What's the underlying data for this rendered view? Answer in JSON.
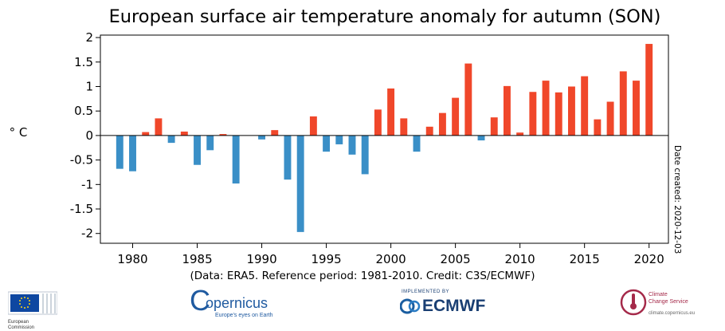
{
  "chart_data": {
    "type": "bar",
    "title": "European surface air temperature anomaly for autumn (SON)",
    "ylabel": "° C",
    "xlabel": "",
    "ylim": [
      -2.2,
      2.05
    ],
    "yticks": [
      2,
      1.5,
      1,
      0.5,
      0,
      -0.5,
      -1,
      -1.5,
      -2
    ],
    "ytick_labels": [
      "2",
      "1.5",
      "1",
      "0.5",
      "0",
      "-0.5",
      "-1",
      "-1.5",
      "-2"
    ],
    "xlim": [
      1977.5,
      2021.5
    ],
    "xticks": [
      1980,
      1985,
      1990,
      1995,
      2000,
      2005,
      2010,
      2015,
      2020
    ],
    "xtick_labels": [
      "1980",
      "1985",
      "1990",
      "1995",
      "2000",
      "2005",
      "2010",
      "2015",
      "2020"
    ],
    "positive_color": "#f0472a",
    "negative_color": "#3a8fc7",
    "grid": false,
    "x": [
      1979,
      1980,
      1981,
      1982,
      1983,
      1984,
      1985,
      1986,
      1987,
      1988,
      1989,
      1990,
      1991,
      1992,
      1993,
      1994,
      1995,
      1996,
      1997,
      1998,
      1999,
      2000,
      2001,
      2002,
      2003,
      2004,
      2005,
      2006,
      2007,
      2008,
      2009,
      2010,
      2011,
      2012,
      2013,
      2014,
      2015,
      2016,
      2017,
      2018,
      2019,
      2020
    ],
    "values": [
      -0.68,
      -0.73,
      0.07,
      0.35,
      -0.15,
      0.08,
      -0.6,
      -0.3,
      0.03,
      -0.98,
      0.0,
      -0.08,
      0.11,
      -0.9,
      -1.97,
      0.39,
      -0.33,
      -0.18,
      -0.39,
      -0.79,
      0.53,
      0.96,
      0.35,
      -0.33,
      0.18,
      0.46,
      0.77,
      1.47,
      -0.1,
      0.37,
      1.01,
      0.06,
      0.89,
      1.12,
      0.88,
      1.0,
      1.21,
      0.33,
      0.69,
      1.31,
      1.12,
      1.87
    ]
  },
  "side_note": "Date created: 2020-12-03",
  "caption": "(Data: ERA5.  Reference period: 1981-2010.  Credit: C3S/ECMWF)",
  "logos": {
    "ec": {
      "line1": "European",
      "line2": "Commission"
    },
    "copernicus": {
      "name": "opernicus",
      "letter": "C",
      "tagline": "Europe's eyes on Earth"
    },
    "ecmwf": {
      "top": "IMPLEMENTED BY",
      "name": "ECMWF"
    },
    "c3s": {
      "line1": "Climate",
      "line2": "Change Service",
      "url": "climate.copernicus.eu"
    }
  }
}
